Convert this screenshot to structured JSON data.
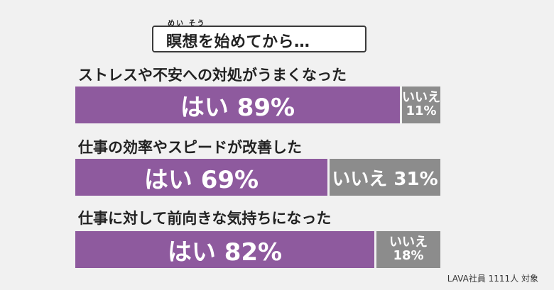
{
  "title": {
    "ruby": "めい そう",
    "text": "瞑想を始めてから…"
  },
  "footnote": "LAVA社員 1111人 対象",
  "colors": {
    "yes": "#8e5a9e",
    "no": "#8c8c8c",
    "background": "#f1f1f1"
  },
  "chart_data": {
    "type": "bar",
    "orientation": "horizontal-stacked-100",
    "title": "瞑想を始めてから…",
    "categories": [
      "ストレスや不安への対処がうまくなった",
      "仕事の効率やスピードが改善した",
      "仕事に対して前向きな気持ちになった"
    ],
    "series": [
      {
        "name": "はい",
        "values": [
          89,
          69,
          82
        ]
      },
      {
        "name": "いいえ",
        "values": [
          11,
          31,
          18
        ]
      }
    ],
    "labels": [
      {
        "yes": "はい 89%",
        "no_line1": "いいえ",
        "no_line2": "11%"
      },
      {
        "yes": "はい 69%",
        "no": "いいえ 31%"
      },
      {
        "yes": "はい 82%",
        "no_line1": "いいえ",
        "no_line2": "18%"
      }
    ],
    "unit": "%"
  }
}
